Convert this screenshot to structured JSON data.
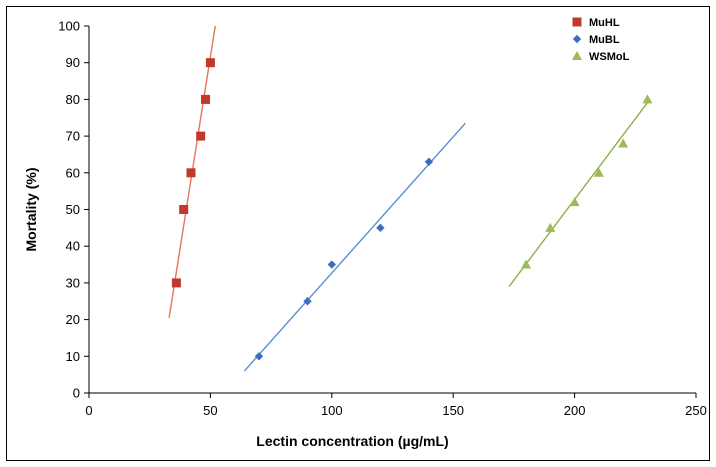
{
  "chart_data": {
    "type": "scatter",
    "title": "",
    "xlabel": "Lectin concentration (µg/mL)",
    "ylabel": "Mortality (%)",
    "xlim": [
      0,
      250
    ],
    "ylim": [
      0,
      100
    ],
    "x_ticks": [
      0,
      50,
      100,
      150,
      200,
      250
    ],
    "y_ticks": [
      0,
      10,
      20,
      30,
      40,
      50,
      60,
      70,
      80,
      90,
      100
    ],
    "grid": false,
    "legend_position": "top-right",
    "series": [
      {
        "name": "MuHL",
        "marker": "square",
        "color": "#c0392b",
        "line_color": "#e8735a",
        "x": [
          36,
          39,
          42,
          46,
          48,
          50
        ],
        "y": [
          30,
          50,
          60,
          70,
          80,
          90
        ],
        "trendline": {
          "x": [
            33,
            52
          ],
          "y": [
            20.5,
            100
          ]
        }
      },
      {
        "name": "MuBL",
        "marker": "diamond",
        "color": "#3a6fbf",
        "line_color": "#5b8fd6",
        "x": [
          70,
          90,
          100,
          120,
          140
        ],
        "y": [
          10,
          25,
          35,
          45,
          63
        ],
        "trendline": {
          "x": [
            64,
            155
          ],
          "y": [
            6,
            73.5
          ]
        }
      },
      {
        "name": "WSMoL",
        "marker": "triangle",
        "color": "#9bbb59",
        "line_color": "#8db04a",
        "x": [
          180,
          190,
          200,
          210,
          220,
          230
        ],
        "y": [
          35,
          45,
          52,
          60,
          68,
          80
        ],
        "trendline": {
          "x": [
            173,
            231
          ],
          "y": [
            29,
            80
          ]
        }
      }
    ]
  }
}
